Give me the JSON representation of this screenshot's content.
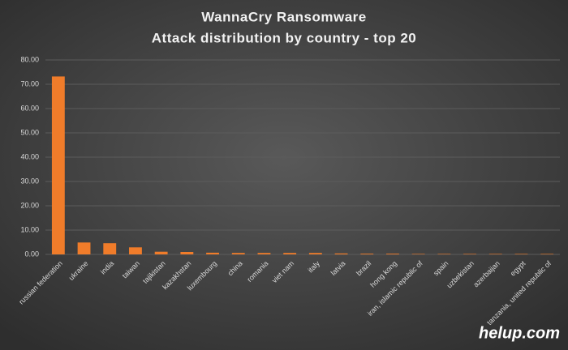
{
  "chart_data": {
    "type": "bar",
    "title": "WannaCry  Ransomware",
    "subtitle": "Attack distribution  by country  - top 20",
    "annotation": "helup.com",
    "categories": [
      "russian federation",
      "ukraine",
      "india",
      "taiwan",
      "tajikistan",
      "kazakhstan",
      "luxembourg",
      "china",
      "romania",
      "viet nam",
      "italy",
      "latvia",
      "brazil",
      "hong kong",
      "iran, islamic republic of",
      "spain",
      "uzbekistan",
      "azerbaijan",
      "egypt",
      "tanzania, united republic of"
    ],
    "values": [
      73.2,
      4.9,
      4.6,
      2.9,
      1.1,
      1.0,
      0.7,
      0.6,
      0.6,
      0.6,
      0.6,
      0.4,
      0.3,
      0.3,
      0.2,
      0.2,
      0.2,
      0.2,
      0.2,
      0.2
    ],
    "color": "#f07c2a",
    "ylim": [
      0,
      80
    ],
    "yticks": [
      {
        "value": 0,
        "label": "0.00"
      },
      {
        "value": 10,
        "label": "10.00"
      },
      {
        "value": 20,
        "label": "20.00"
      },
      {
        "value": 30,
        "label": "30.00"
      },
      {
        "value": 40,
        "label": "40.00"
      },
      {
        "value": 50,
        "label": "50.00"
      },
      {
        "value": 60,
        "label": "60.00"
      },
      {
        "value": 70,
        "label": "70.00"
      },
      {
        "value": 80,
        "label": "80.00"
      }
    ],
    "grid": true
  }
}
